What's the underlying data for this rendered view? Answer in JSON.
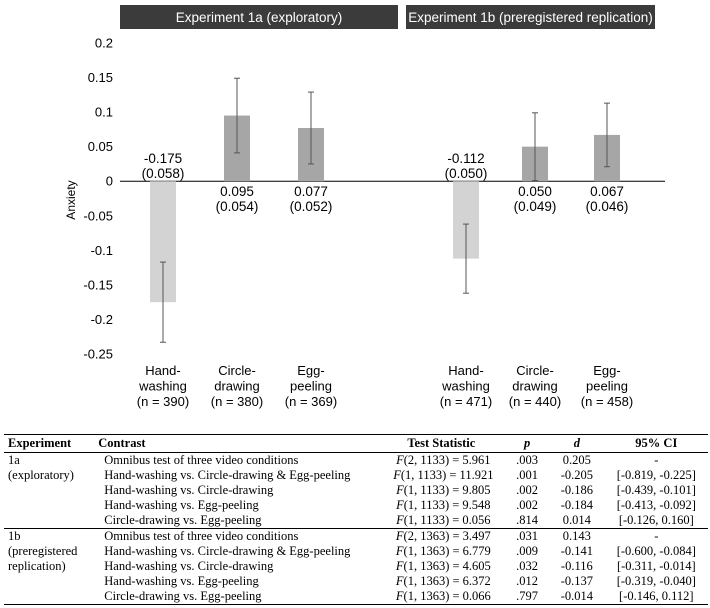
{
  "chart_data": {
    "type": "bar",
    "ylabel": "Anxiety",
    "ylim": [
      -0.25,
      0.2
    ],
    "yticks": [
      "0.2",
      "0.15",
      "0.1",
      "0.05",
      "0",
      "-0.05",
      "-0.1",
      "-0.15",
      "-0.2",
      "-0.25"
    ],
    "ytick_values": [
      0.2,
      0.15,
      0.1,
      0.05,
      0,
      -0.05,
      -0.1,
      -0.15,
      -0.2,
      -0.25
    ],
    "panels": [
      {
        "title": "Experiment 1a (exploratory)",
        "bars": [
          {
            "category": [
              "Hand-",
              "washing",
              "(n = 390)"
            ],
            "value": -0.175,
            "error": 0.058,
            "label_value": "-0.175",
            "label_se": "(0.058)",
            "color": "#d3d3d3"
          },
          {
            "category": [
              "Circle-",
              "drawing",
              "(n = 380)"
            ],
            "value": 0.095,
            "error": 0.054,
            "label_value": "0.095",
            "label_se": "(0.054)",
            "color": "#a6a6a6"
          },
          {
            "category": [
              "Egg-",
              "peeling",
              "(n = 369)"
            ],
            "value": 0.077,
            "error": 0.052,
            "label_value": "0.077",
            "label_se": "(0.052)",
            "color": "#a6a6a6"
          }
        ]
      },
      {
        "title": "Experiment 1b (preregistered replication)",
        "bars": [
          {
            "category": [
              "Hand-",
              "washing",
              "(n = 471)"
            ],
            "value": -0.112,
            "error": 0.05,
            "label_value": "-0.112",
            "label_se": "(0.050)",
            "color": "#d3d3d3"
          },
          {
            "category": [
              "Circle-",
              "drawing",
              "(n = 440)"
            ],
            "value": 0.05,
            "error": 0.049,
            "label_value": "0.050",
            "label_se": "(0.049)",
            "color": "#a6a6a6"
          },
          {
            "category": [
              "Egg-",
              "peeling",
              "(n = 458)"
            ],
            "value": 0.067,
            "error": 0.046,
            "label_value": "0.067",
            "label_se": "(0.046)",
            "color": "#a6a6a6"
          }
        ]
      }
    ]
  },
  "panel_title_color": "#3b3b3b",
  "table": {
    "headers": {
      "experiment": "Experiment",
      "contrast": "Contrast",
      "test_statistic": "Test Statistic",
      "p": "p",
      "d": "d",
      "ci": "95% CI"
    },
    "groups": [
      {
        "experiment": [
          "1a",
          "(exploratory)"
        ],
        "rows": [
          {
            "contrast": "Omnibus test of three video conditions",
            "stat_symbol": "F",
            "stat": "(2, 1133) = 5.961",
            "p": ".003",
            "d": "0.205",
            "ci": "-"
          },
          {
            "contrast": "Hand-washing vs. Circle-drawing & Egg-peeling",
            "stat_symbol": "F",
            "stat": "(1, 1133) = 11.921",
            "p": ".001",
            "d": "-0.205",
            "ci": "[-0.819, -0.225]"
          },
          {
            "contrast": "Hand-washing vs. Circle-drawing",
            "stat_symbol": "F",
            "stat": "(1, 1133) = 9.805",
            "p": ".002",
            "d": "-0.186",
            "ci": "[-0.439, -0.101]"
          },
          {
            "contrast": "Hand-washing vs. Egg-peeling",
            "stat_symbol": "F",
            "stat": "(1, 1133) = 9.548",
            "p": ".002",
            "d": "-0.184",
            "ci": "[-0.413, -0.092]"
          },
          {
            "contrast": "Circle-drawing vs. Egg-peeling",
            "stat_symbol": "F",
            "stat": "(1, 1133) = 0.056",
            "p": ".814",
            "d": "0.014",
            "ci": "[-0.126, 0.160]"
          }
        ]
      },
      {
        "experiment": [
          "1b",
          "(preregistered",
          "replication)"
        ],
        "rows": [
          {
            "contrast": "Omnibus test of three video conditions",
            "stat_symbol": "F",
            "stat": "(2, 1363) = 3.497",
            "p": ".031",
            "d": "0.143",
            "ci": "-"
          },
          {
            "contrast": "Hand-washing vs. Circle-drawing & Egg-peeling",
            "stat_symbol": "F",
            "stat": "(1, 1363) = 6.779",
            "p": ".009",
            "d": "-0.141",
            "ci": "[-0.600, -0.084]"
          },
          {
            "contrast": "Hand-washing vs. Circle-drawing",
            "stat_symbol": "F",
            "stat": "(1, 1363) = 4.605",
            "p": ".032",
            "d": "-0.116",
            "ci": "[-0.311, -0.014]"
          },
          {
            "contrast": "Hand-washing vs. Egg-peeling",
            "stat_symbol": "F",
            "stat": "(1, 1363) = 6.372",
            "p": ".012",
            "d": "-0.137",
            "ci": "[-0.319, -0.040]"
          },
          {
            "contrast": "Circle-drawing vs. Egg-peeling",
            "stat_symbol": "F",
            "stat": "(1, 1363) = 0.066",
            "p": ".797",
            "d": "-0.014",
            "ci": "[-0.146, 0.112]"
          }
        ]
      }
    ]
  }
}
